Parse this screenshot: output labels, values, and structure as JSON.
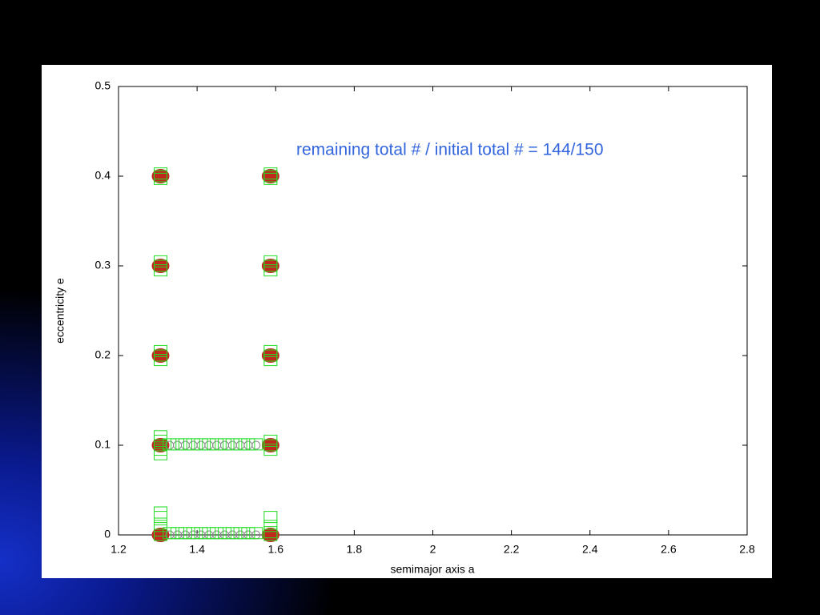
{
  "chart_data": {
    "type": "scatter",
    "annotation": "remaining total # / initial total  # = 144/150",
    "x_label": "semimajor axis a",
    "y_label": "eccentricity e",
    "xlim": [
      1.2,
      2.8
    ],
    "ylim": [
      0,
      0.5
    ],
    "xticks": [
      1.2,
      1.4,
      1.6,
      1.8,
      2,
      2.2,
      2.4,
      2.6,
      2.8
    ],
    "yticks": [
      0,
      0.1,
      0.2,
      0.3,
      0.4,
      0.5
    ],
    "series": [
      {
        "color": "#c0281e",
        "marker": "filled-circle",
        "x": [
          1.307,
          1.307,
          1.307,
          1.307,
          1.307,
          1.587,
          1.587,
          1.587,
          1.587,
          1.587
        ],
        "y": [
          0,
          0.1,
          0.2,
          0.3,
          0.4,
          0,
          0.1,
          0.2,
          0.3,
          0.4
        ]
      },
      {
        "color": "#888888",
        "marker": "open-circle",
        "x": [
          1.33,
          1.35,
          1.37,
          1.39,
          1.41,
          1.43,
          1.45,
          1.47,
          1.49,
          1.51,
          1.53,
          1.55,
          1.33,
          1.35,
          1.37,
          1.39,
          1.41,
          1.43,
          1.45,
          1.47,
          1.49,
          1.51,
          1.53,
          1.55
        ],
        "y": [
          0,
          0,
          0,
          0,
          0,
          0,
          0,
          0,
          0,
          0,
          0,
          0,
          0.1,
          0.1,
          0.1,
          0.1,
          0.1,
          0.1,
          0.1,
          0.1,
          0.1,
          0.1,
          0.1,
          0.1
        ]
      },
      {
        "color": "#22dd22",
        "marker": "open-square",
        "x": [
          1.307,
          1.307,
          1.307,
          1.307,
          1.307,
          1.307,
          1.307,
          1.307,
          1.307,
          1.307,
          1.307,
          1.307,
          1.307,
          1.307,
          1.307,
          1.307,
          1.307,
          1.307,
          1.307,
          1.587,
          1.587,
          1.587,
          1.587,
          1.587,
          1.587,
          1.587,
          1.587,
          1.587,
          1.587,
          1.587,
          1.587,
          1.587,
          1.587,
          1.587,
          1.587,
          1.33,
          1.35,
          1.37,
          1.39,
          1.41,
          1.43,
          1.45,
          1.47,
          1.49,
          1.51,
          1.53,
          1.55,
          1.33,
          1.35,
          1.37,
          1.39,
          1.41,
          1.43,
          1.45,
          1.47,
          1.49,
          1.51,
          1.53,
          1.55
        ],
        "y": [
          0,
          0.005,
          0.01,
          0.02,
          0.025,
          0.09,
          0.095,
          0.1,
          0.105,
          0.11,
          0.195,
          0.2,
          0.205,
          0.295,
          0.3,
          0.305,
          0.397,
          0.4,
          0.403,
          0,
          0.003,
          0.01,
          0.02,
          0.095,
          0.1,
          0.105,
          0.195,
          0.2,
          0.205,
          0.295,
          0.3,
          0.305,
          0.397,
          0.4,
          0.403,
          0.002,
          0.002,
          0.002,
          0.002,
          0.002,
          0.002,
          0.002,
          0.002,
          0.002,
          0.002,
          0.002,
          0.002,
          0.101,
          0.101,
          0.101,
          0.101,
          0.101,
          0.101,
          0.101,
          0.101,
          0.101,
          0.101,
          0.101,
          0.101
        ]
      }
    ]
  }
}
